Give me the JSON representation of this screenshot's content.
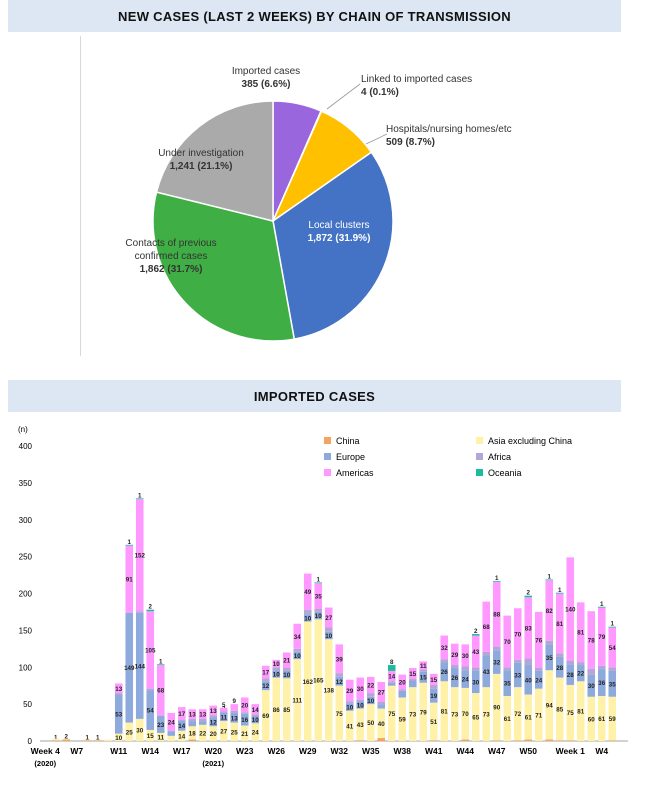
{
  "pie_title": "NEW CASES (LAST 2 WEEKS) BY CHAIN OF TRANSMISSION",
  "bar_title": "IMPORTED CASES",
  "chart_data": [
    {
      "type": "pie",
      "title": "NEW CASES (LAST 2 WEEKS) BY CHAIN OF TRANSMISSION",
      "slices": [
        {
          "label": "Imported cases",
          "value_text": "385 (6.6%)",
          "value": 385,
          "percent": 6.6,
          "color": "#9966dd"
        },
        {
          "label": "Linked to imported cases",
          "value_text": "4 (0.1%)",
          "value": 4,
          "percent": 0.1,
          "color": "#ff9933"
        },
        {
          "label": "Hospitals/nursing homes/etc",
          "value_text": "509 (8.7%)",
          "value": 509,
          "percent": 8.7,
          "color": "#ffc000"
        },
        {
          "label": "Local clusters",
          "value_text": "1,872 (31.9%)",
          "value": 1872,
          "percent": 31.9,
          "color": "#4472c4"
        },
        {
          "label": "Contacts of previous confirmed cases",
          "value_text": "1,862 (31.7%)",
          "value": 1862,
          "percent": 31.7,
          "color": "#3fae44"
        },
        {
          "label": "Under investigation",
          "value_text": "1,241 (21.1%)",
          "value": 1241,
          "percent": 21.1,
          "color": "#aaaaaa"
        }
      ]
    },
    {
      "type": "bar",
      "stacked": true,
      "title": "IMPORTED CASES",
      "ylabel": "(n)",
      "ylim": [
        0,
        400
      ],
      "yticks": [
        0,
        50,
        100,
        150,
        200,
        250,
        300,
        350,
        400
      ],
      "xtick_labels": [
        "Week 4",
        "W7",
        "W11",
        "W14",
        "W17",
        "W20",
        "W23",
        "W26",
        "W29",
        "W32",
        "W35",
        "W38",
        "W41",
        "W44",
        "W47",
        "W50",
        "Week 1",
        "W4"
      ],
      "xtick_sublabels": [
        {
          "index": 0,
          "text": "(2020)"
        },
        {
          "index": 16,
          "text": "(2021)"
        }
      ],
      "legend_position": "top-right",
      "legend": [
        {
          "name": "China",
          "color": "#f4a460"
        },
        {
          "name": "Asia excluding China",
          "color": "#fff2a8"
        },
        {
          "name": "Europe",
          "color": "#8ea9db"
        },
        {
          "name": "Africa",
          "color": "#b4a7d6"
        },
        {
          "name": "Americas",
          "color": "#ff99ff"
        },
        {
          "name": "Oceania",
          "color": "#1abc9c"
        }
      ],
      "categories": [
        "Week 4",
        "W5",
        "W6",
        "W7",
        "W8",
        "W9",
        "W10",
        "W11",
        "W12",
        "W13",
        "W14",
        "W15",
        "W16",
        "W17",
        "W18",
        "W19",
        "W20",
        "W21",
        "W22",
        "W23",
        "W24",
        "W25",
        "W26",
        "W27",
        "W28",
        "W29",
        "W30",
        "W31",
        "W32",
        "W33",
        "W34",
        "W35",
        "W36",
        "W37",
        "W38",
        "W39",
        "W40",
        "W41",
        "W42",
        "W43",
        "W44",
        "W45",
        "W46",
        "W47",
        "W48",
        "W49",
        "W50",
        "W51",
        "W52",
        "W53",
        "Week 1",
        "W2",
        "W3",
        "W4",
        "W5",
        "W6"
      ],
      "series": [
        {
          "name": "China",
          "values": [
            0,
            1,
            2,
            0,
            1,
            1,
            0,
            0,
            0,
            0,
            0,
            0,
            0,
            0,
            2,
            0,
            0,
            0,
            0,
            0,
            0,
            0,
            0,
            0,
            0,
            0,
            0,
            0,
            0,
            0,
            1,
            0,
            4,
            0,
            0,
            0,
            0,
            1,
            0,
            0,
            2,
            0,
            0,
            1,
            0,
            1,
            2,
            0,
            2,
            1,
            1,
            0,
            0,
            0,
            1,
            0
          ]
        },
        {
          "name": "Asia excluding China",
          "values": [
            0,
            2,
            1,
            0,
            1,
            1,
            2,
            10,
            25,
            30,
            15,
            11,
            7,
            14,
            18,
            22,
            20,
            27,
            25,
            21,
            24,
            69,
            86,
            85,
            111,
            162,
            165,
            138,
            75,
            41,
            43,
            50,
            40,
            75,
            59,
            73,
            79,
            51,
            81,
            73,
            70,
            65,
            73,
            90,
            61,
            72,
            61,
            71,
            94,
            85,
            75,
            81,
            60,
            61,
            59,
            0
          ]
        },
        {
          "name": "Europe",
          "values": [
            0,
            0,
            0,
            0,
            0,
            0,
            0,
            53,
            149,
            144,
            54,
            23,
            6,
            14,
            7,
            5,
            12,
            11,
            13,
            16,
            10,
            12,
            10,
            10,
            10,
            10,
            10,
            10,
            12,
            10,
            10,
            10,
            6,
            4,
            9,
            9,
            15,
            19,
            26,
            26,
            24,
            30,
            43,
            32,
            35,
            33,
            40,
            24,
            35,
            28,
            28,
            22,
            30,
            36,
            35,
            0
          ]
        },
        {
          "name": "Africa",
          "values": [
            0,
            0,
            0,
            0,
            0,
            0,
            0,
            2,
            0,
            2,
            2,
            1,
            1,
            1,
            3,
            3,
            3,
            2,
            3,
            2,
            2,
            4,
            4,
            4,
            4,
            6,
            4,
            6,
            5,
            3,
            2,
            5,
            3,
            2,
            2,
            2,
            3,
            5,
            4,
            4,
            5,
            5,
            5,
            5,
            4,
            4,
            9,
            4,
            5,
            5,
            5,
            4,
            8,
            5,
            5,
            0
          ]
        },
        {
          "name": "Americas",
          "values": [
            0,
            0,
            0,
            0,
            0,
            0,
            0,
            13,
            91,
            152,
            105,
            68,
            24,
            17,
            13,
            13,
            13,
            5,
            9,
            20,
            14,
            17,
            10,
            21,
            34,
            49,
            35,
            27,
            39,
            29,
            30,
            22,
            27,
            14,
            20,
            15,
            11,
            15,
            32,
            29,
            30,
            43,
            68,
            88,
            70,
            70,
            83,
            76,
            82,
            81,
            140,
            81,
            78,
            79,
            54,
            0
          ]
        },
        {
          "name": "Oceania",
          "values": [
            0,
            0,
            0,
            0,
            0,
            0,
            0,
            0,
            1,
            1,
            2,
            1,
            0,
            0,
            0,
            0,
            0,
            0,
            0,
            0,
            0,
            0,
            0,
            0,
            0,
            0,
            1,
            0,
            0,
            0,
            0,
            0,
            0,
            8,
            0,
            0,
            0,
            0,
            0,
            0,
            0,
            2,
            0,
            1,
            0,
            0,
            2,
            0,
            1,
            1,
            0,
            0,
            0,
            1,
            1,
            0
          ]
        }
      ]
    }
  ]
}
